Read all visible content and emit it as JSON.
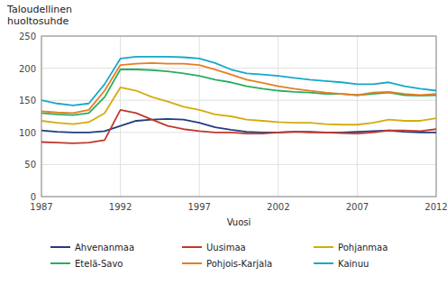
{
  "chart_data": {
    "type": "line",
    "title": "Taloudellinen\nhuoltosuhde",
    "xlabel": "Vuosi",
    "x": [
      1987,
      1988,
      1989,
      1990,
      1991,
      1992,
      1993,
      1994,
      1995,
      1996,
      1997,
      1998,
      1999,
      2000,
      2001,
      2002,
      2003,
      2004,
      2005,
      2006,
      2007,
      2008,
      2009,
      2010,
      2011,
      2012
    ],
    "series": [
      {
        "name": "Ahvenanmaa",
        "color": "#1f3f7f",
        "values": [
          103,
          101,
          100,
          100,
          102,
          110,
          118,
          120,
          121,
          120,
          115,
          108,
          104,
          101,
          100,
          100,
          101,
          101,
          100,
          100,
          101,
          102,
          103,
          101,
          100,
          100
        ]
      },
      {
        "name": "Uusimaa",
        "color": "#c0392b",
        "values": [
          85,
          84,
          83,
          84,
          88,
          135,
          130,
          120,
          110,
          105,
          102,
          100,
          100,
          98,
          98,
          100,
          101,
          100,
          100,
          99,
          98,
          100,
          103,
          103,
          102,
          105
        ]
      },
      {
        "name": "Pohjanmaa",
        "color": "#d4ac0d",
        "values": [
          118,
          115,
          113,
          116,
          130,
          170,
          165,
          155,
          148,
          140,
          135,
          128,
          125,
          120,
          118,
          116,
          115,
          115,
          113,
          112,
          112,
          115,
          120,
          118,
          118,
          122
        ]
      },
      {
        "name": "Etelä-Savo",
        "color": "#27ae60",
        "values": [
          130,
          128,
          127,
          130,
          155,
          198,
          198,
          197,
          195,
          192,
          188,
          182,
          178,
          172,
          168,
          165,
          163,
          162,
          160,
          160,
          158,
          160,
          162,
          158,
          157,
          158
        ]
      },
      {
        "name": "Pohjois-Karjala",
        "color": "#e67e22",
        "values": [
          133,
          131,
          130,
          135,
          165,
          205,
          207,
          208,
          207,
          207,
          205,
          198,
          190,
          182,
          177,
          172,
          168,
          165,
          162,
          160,
          158,
          162,
          163,
          160,
          158,
          160
        ]
      },
      {
        "name": "Kainuu",
        "color": "#17a8c8",
        "values": [
          150,
          145,
          142,
          145,
          175,
          215,
          218,
          218,
          218,
          217,
          215,
          208,
          198,
          192,
          190,
          188,
          185,
          182,
          180,
          178,
          175,
          175,
          178,
          172,
          168,
          165
        ]
      }
    ],
    "xlim": [
      1987,
      2012
    ],
    "xticks": [
      1987,
      1992,
      1997,
      2002,
      2007,
      2012
    ],
    "ylim": [
      0,
      250
    ],
    "yticks": [
      0,
      50,
      100,
      150,
      200,
      250
    ],
    "grid": true,
    "legend": "bottom"
  }
}
